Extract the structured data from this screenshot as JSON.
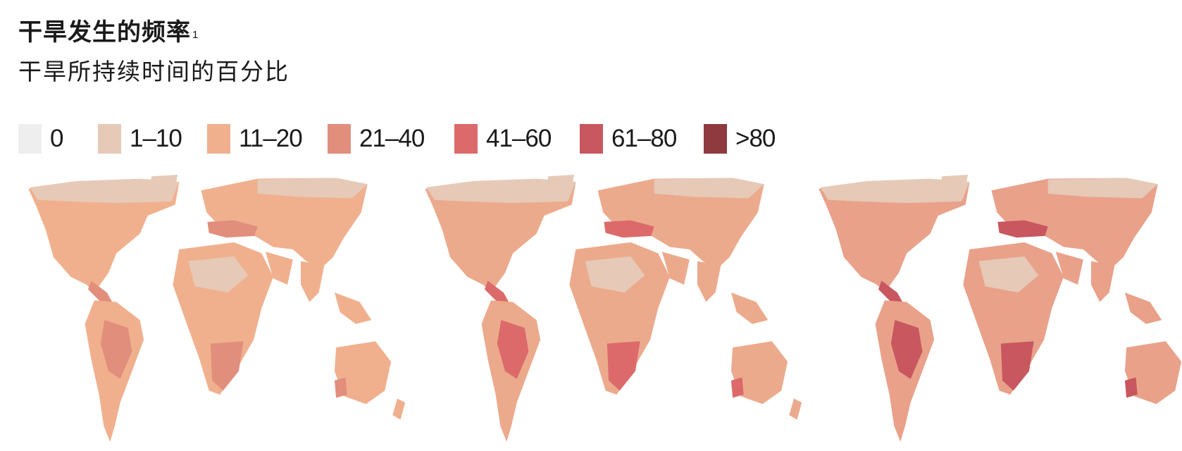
{
  "title": "干旱发生的频率",
  "title_footnote": "1",
  "subtitle": "干旱所持续时间的百分比",
  "legend": [
    {
      "label": "0",
      "color": "#eeeeee"
    },
    {
      "label": "1–10",
      "color": "#e6c9b7"
    },
    {
      "label": "11–20",
      "color": "#f0b08e"
    },
    {
      "label": "21–40",
      "color": "#e28e7c"
    },
    {
      "label": "41–60",
      "color": "#dc6a6a"
    },
    {
      "label": "61–80",
      "color": "#c8575f"
    },
    {
      "label": ">80",
      "color": "#8e3a3e"
    }
  ],
  "maps": [
    {
      "name": "map-1",
      "base": "#f0b08e",
      "north": "#e6c9b7",
      "hot": "#e28e7c"
    },
    {
      "name": "map-2",
      "base": "#ecaa8c",
      "north": "#e6c9b7",
      "hot": "#dc6a6a"
    },
    {
      "name": "map-3",
      "base": "#e9a18a",
      "north": "#e6c9b7",
      "hot": "#c8575f"
    }
  ]
}
